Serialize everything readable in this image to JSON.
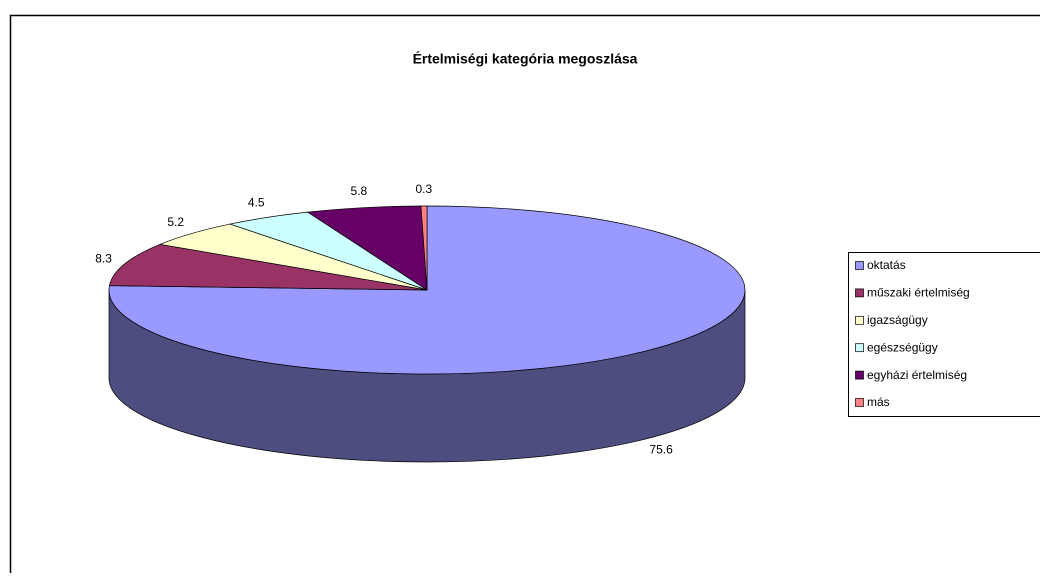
{
  "chart_data": {
    "type": "pie",
    "title": "Értelmiségi kategória megoszlása",
    "categories": [
      "oktatás",
      "műszaki értelmiség",
      "igazságügy",
      "egészségügy",
      "egyházi értelmiség",
      "más"
    ],
    "values": [
      75.6,
      8.3,
      5.2,
      4.5,
      5.8,
      0.3
    ],
    "colors": [
      "#9999ff",
      "#993366",
      "#ffffcc",
      "#ccffff",
      "#660066",
      "#ff8080"
    ],
    "legend": "right"
  }
}
